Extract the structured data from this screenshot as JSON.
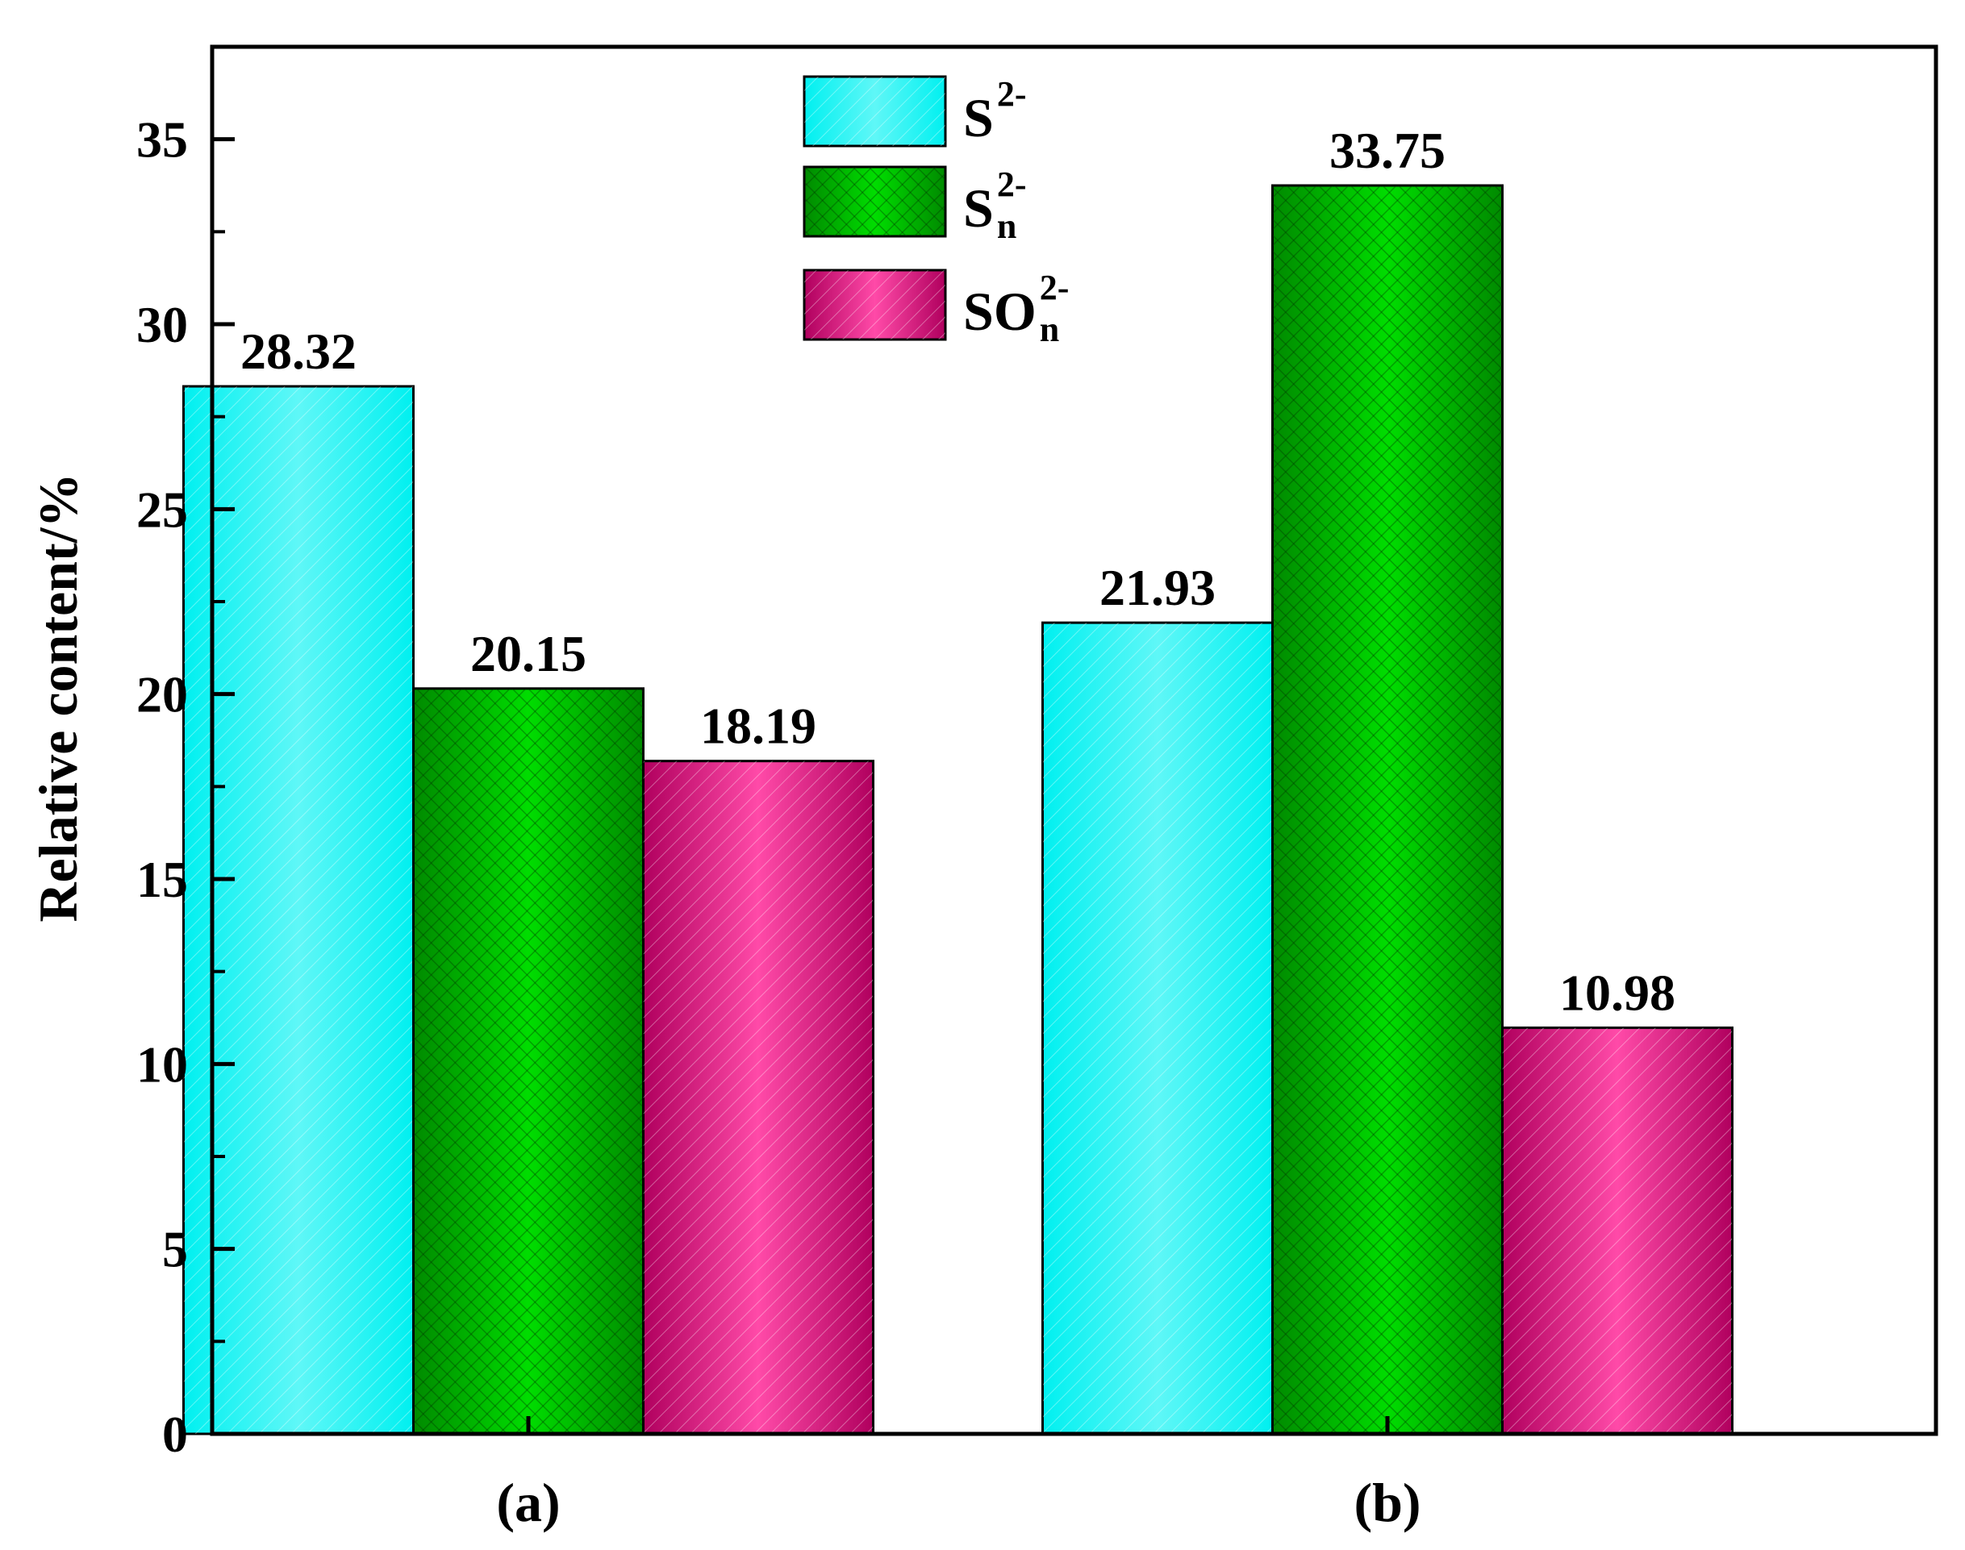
{
  "chart_data": {
    "type": "bar",
    "title": "",
    "xlabel": "",
    "ylabel": "Relative content/%",
    "categories": [
      "(a)",
      "(b)"
    ],
    "ylim": [
      0,
      37.5
    ],
    "yticks": [
      0,
      5,
      10,
      15,
      20,
      25,
      30,
      35
    ],
    "grid": false,
    "legend_position": "top-center",
    "series": [
      {
        "name": "S²⁻",
        "legend": {
          "base": "S",
          "sup": "2-",
          "sub": ""
        },
        "color": "#00f5f5",
        "values": [
          28.32,
          21.93
        ],
        "labels": [
          "28.32",
          "21.93"
        ]
      },
      {
        "name": "Sₙ²⁻",
        "legend": {
          "base": "S",
          "sup": "2-",
          "sub": "n"
        },
        "color": "#00cc00",
        "values": [
          20.15,
          33.75
        ],
        "labels": [
          "20.15",
          "33.75"
        ]
      },
      {
        "name": "SOₙ²⁻",
        "legend": {
          "base": "SO",
          "sup": "2-",
          "sub": "n"
        },
        "color": "#ff3fa4",
        "values": [
          18.19,
          10.98
        ],
        "labels": [
          "18.19",
          "10.98"
        ]
      }
    ]
  }
}
